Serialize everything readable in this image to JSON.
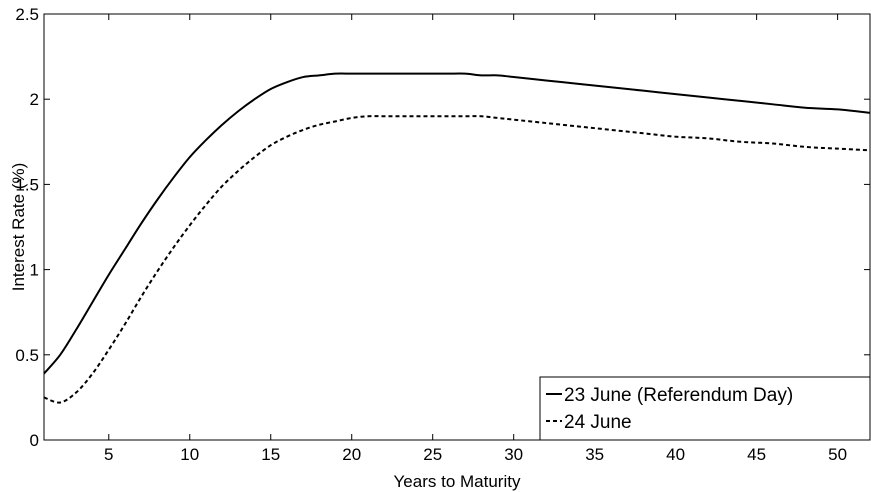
{
  "chart_data": {
    "type": "line",
    "xlabel": "Years to Maturity",
    "ylabel": "Interest Rate (%)",
    "xlim": [
      1,
      52
    ],
    "ylim": [
      0,
      2.5
    ],
    "xticks": [
      5,
      10,
      15,
      20,
      25,
      30,
      35,
      40,
      45,
      50
    ],
    "yticks": [
      0,
      0.5,
      1,
      1.5,
      2,
      2.5
    ],
    "ytick_labels": [
      "0",
      "0.5",
      "1",
      "1.5",
      "2",
      "2.5"
    ],
    "grid": false,
    "legend_position": "bottom-right",
    "x": [
      1,
      2,
      3,
      4,
      5,
      6,
      7,
      8,
      9,
      10,
      11,
      12,
      13,
      14,
      15,
      16,
      17,
      18,
      19,
      20,
      21,
      22,
      23,
      24,
      25,
      26,
      27,
      28,
      29,
      30,
      32,
      34,
      36,
      38,
      40,
      42,
      44,
      46,
      48,
      50,
      52
    ],
    "series": [
      {
        "name": "23 June (Referendum Day)",
        "style": "solid",
        "color": "#000000",
        "values": [
          0.39,
          0.5,
          0.65,
          0.81,
          0.97,
          1.12,
          1.27,
          1.41,
          1.54,
          1.66,
          1.76,
          1.85,
          1.93,
          2.0,
          2.06,
          2.1,
          2.13,
          2.14,
          2.15,
          2.15,
          2.15,
          2.15,
          2.15,
          2.15,
          2.15,
          2.15,
          2.15,
          2.14,
          2.14,
          2.13,
          2.11,
          2.09,
          2.07,
          2.05,
          2.03,
          2.01,
          1.99,
          1.97,
          1.95,
          1.94,
          1.92
        ]
      },
      {
        "name": "24 June",
        "style": "dashed",
        "color": "#000000",
        "values": [
          0.25,
          0.22,
          0.28,
          0.39,
          0.53,
          0.68,
          0.84,
          0.99,
          1.13,
          1.26,
          1.38,
          1.49,
          1.58,
          1.66,
          1.73,
          1.78,
          1.82,
          1.85,
          1.87,
          1.89,
          1.9,
          1.9,
          1.9,
          1.9,
          1.9,
          1.9,
          1.9,
          1.9,
          1.89,
          1.88,
          1.86,
          1.84,
          1.82,
          1.8,
          1.78,
          1.77,
          1.75,
          1.74,
          1.72,
          1.71,
          1.7
        ]
      }
    ]
  }
}
